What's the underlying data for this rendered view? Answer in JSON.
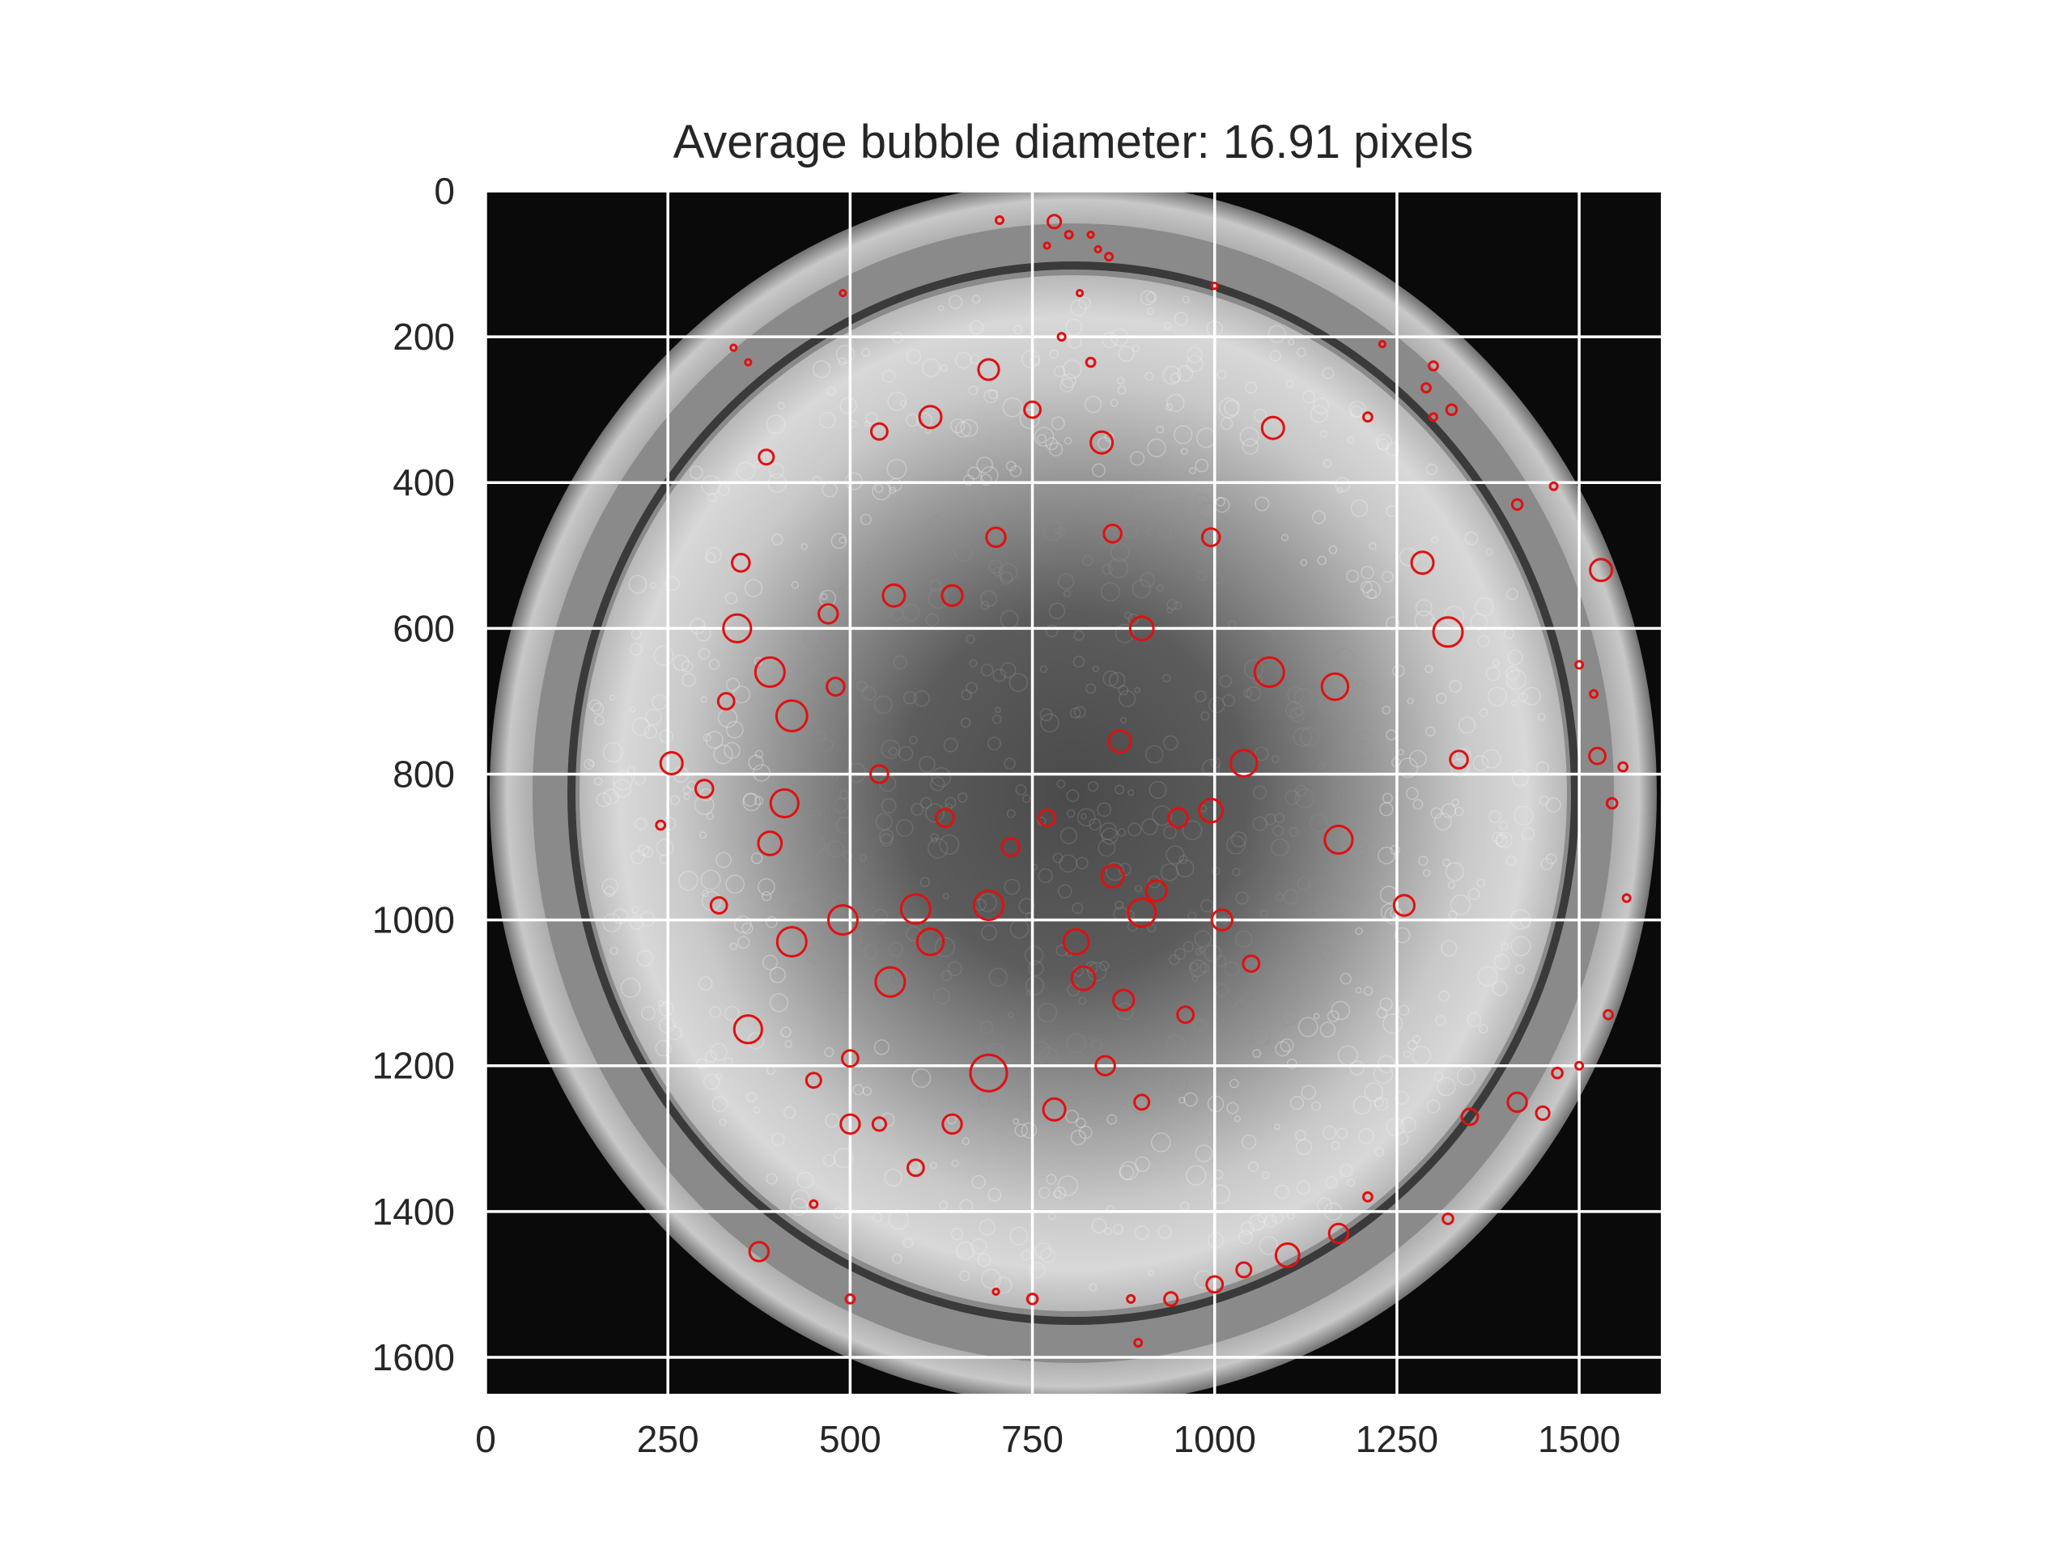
{
  "chart_data": {
    "type": "scatter",
    "title": "Average bubble diameter: 16.91 pixels",
    "xlabel": "",
    "ylabel": "",
    "xlim": [
      0,
      1612
    ],
    "ylim": [
      1650,
      0
    ],
    "y_inverted": true,
    "grid": true,
    "grid_color": "#ffffff",
    "marker_color": "#e01010",
    "background": "grayscale image of bubble foam in a circular column",
    "x_ticks": [
      "0",
      "250",
      "500",
      "750",
      "1000",
      "1250",
      "1500"
    ],
    "x_tick_values": [
      0,
      250,
      500,
      750,
      1000,
      1250,
      1500
    ],
    "y_ticks": [
      "0",
      "200",
      "400",
      "600",
      "800",
      "1000",
      "1200",
      "1400",
      "1600"
    ],
    "y_tick_values": [
      0,
      200,
      400,
      600,
      800,
      1000,
      1200,
      1400,
      1600
    ],
    "marker": "hollow circle",
    "points": [
      {
        "x": 705,
        "y": 40,
        "d": 10
      },
      {
        "x": 780,
        "y": 42,
        "d": 18
      },
      {
        "x": 800,
        "y": 60,
        "d": 10
      },
      {
        "x": 770,
        "y": 75,
        "d": 8
      },
      {
        "x": 830,
        "y": 60,
        "d": 8
      },
      {
        "x": 855,
        "y": 90,
        "d": 10
      },
      {
        "x": 840,
        "y": 80,
        "d": 8
      },
      {
        "x": 490,
        "y": 140,
        "d": 8
      },
      {
        "x": 1000,
        "y": 130,
        "d": 8
      },
      {
        "x": 815,
        "y": 140,
        "d": 8
      },
      {
        "x": 340,
        "y": 215,
        "d": 8
      },
      {
        "x": 360,
        "y": 235,
        "d": 8
      },
      {
        "x": 690,
        "y": 245,
        "d": 28
      },
      {
        "x": 790,
        "y": 200,
        "d": 10
      },
      {
        "x": 830,
        "y": 235,
        "d": 12
      },
      {
        "x": 1230,
        "y": 210,
        "d": 8
      },
      {
        "x": 1300,
        "y": 240,
        "d": 12
      },
      {
        "x": 1290,
        "y": 270,
        "d": 12
      },
      {
        "x": 1325,
        "y": 300,
        "d": 14
      },
      {
        "x": 1300,
        "y": 310,
        "d": 10
      },
      {
        "x": 1210,
        "y": 310,
        "d": 12
      },
      {
        "x": 385,
        "y": 365,
        "d": 20
      },
      {
        "x": 1465,
        "y": 405,
        "d": 10
      },
      {
        "x": 1415,
        "y": 430,
        "d": 14
      },
      {
        "x": 1530,
        "y": 520,
        "d": 30
      },
      {
        "x": 1320,
        "y": 605,
        "d": 40
      },
      {
        "x": 1500,
        "y": 650,
        "d": 10
      },
      {
        "x": 1520,
        "y": 690,
        "d": 10
      },
      {
        "x": 1525,
        "y": 775,
        "d": 22
      },
      {
        "x": 1560,
        "y": 790,
        "d": 12
      },
      {
        "x": 1545,
        "y": 840,
        "d": 14
      },
      {
        "x": 1565,
        "y": 970,
        "d": 10
      },
      {
        "x": 1540,
        "y": 1130,
        "d": 12
      },
      {
        "x": 1500,
        "y": 1200,
        "d": 10
      },
      {
        "x": 1470,
        "y": 1210,
        "d": 14
      },
      {
        "x": 1450,
        "y": 1265,
        "d": 18
      },
      {
        "x": 1415,
        "y": 1250,
        "d": 26
      },
      {
        "x": 1350,
        "y": 1270,
        "d": 22
      },
      {
        "x": 1320,
        "y": 1410,
        "d": 14
      },
      {
        "x": 1210,
        "y": 1380,
        "d": 12
      },
      {
        "x": 1170,
        "y": 1430,
        "d": 26
      },
      {
        "x": 1100,
        "y": 1460,
        "d": 32
      },
      {
        "x": 1040,
        "y": 1480,
        "d": 20
      },
      {
        "x": 1000,
        "y": 1500,
        "d": 22
      },
      {
        "x": 940,
        "y": 1520,
        "d": 18
      },
      {
        "x": 885,
        "y": 1520,
        "d": 10
      },
      {
        "x": 895,
        "y": 1580,
        "d": 10
      },
      {
        "x": 750,
        "y": 1520,
        "d": 14
      },
      {
        "x": 700,
        "y": 1510,
        "d": 8
      },
      {
        "x": 500,
        "y": 1520,
        "d": 12
      },
      {
        "x": 375,
        "y": 1455,
        "d": 26
      },
      {
        "x": 450,
        "y": 1390,
        "d": 10
      },
      {
        "x": 255,
        "y": 785,
        "d": 30
      },
      {
        "x": 240,
        "y": 870,
        "d": 12
      },
      {
        "x": 350,
        "y": 510,
        "d": 24
      },
      {
        "x": 345,
        "y": 600,
        "d": 38
      },
      {
        "x": 390,
        "y": 660,
        "d": 40
      },
      {
        "x": 420,
        "y": 720,
        "d": 42
      },
      {
        "x": 410,
        "y": 840,
        "d": 38
      },
      {
        "x": 390,
        "y": 895,
        "d": 32
      },
      {
        "x": 420,
        "y": 1030,
        "d": 40
      },
      {
        "x": 360,
        "y": 1150,
        "d": 38
      },
      {
        "x": 490,
        "y": 1000,
        "d": 40
      },
      {
        "x": 500,
        "y": 1280,
        "d": 26
      },
      {
        "x": 590,
        "y": 1340,
        "d": 22
      },
      {
        "x": 690,
        "y": 1210,
        "d": 50
      },
      {
        "x": 780,
        "y": 1260,
        "d": 30
      },
      {
        "x": 850,
        "y": 1200,
        "d": 26
      },
      {
        "x": 900,
        "y": 990,
        "d": 38
      },
      {
        "x": 860,
        "y": 940,
        "d": 30
      },
      {
        "x": 920,
        "y": 960,
        "d": 28
      },
      {
        "x": 1040,
        "y": 785,
        "d": 36
      },
      {
        "x": 1075,
        "y": 660,
        "d": 40
      },
      {
        "x": 1170,
        "y": 890,
        "d": 38
      },
      {
        "x": 1165,
        "y": 680,
        "d": 36
      },
      {
        "x": 1080,
        "y": 325,
        "d": 30
      },
      {
        "x": 1285,
        "y": 510,
        "d": 30
      },
      {
        "x": 1335,
        "y": 780,
        "d": 24
      },
      {
        "x": 1260,
        "y": 980,
        "d": 28
      },
      {
        "x": 995,
        "y": 850,
        "d": 32
      },
      {
        "x": 995,
        "y": 475,
        "d": 24
      },
      {
        "x": 845,
        "y": 345,
        "d": 30
      },
      {
        "x": 610,
        "y": 310,
        "d": 30
      },
      {
        "x": 560,
        "y": 555,
        "d": 30
      },
      {
        "x": 640,
        "y": 555,
        "d": 28
      },
      {
        "x": 700,
        "y": 475,
        "d": 26
      },
      {
        "x": 590,
        "y": 985,
        "d": 40
      },
      {
        "x": 610,
        "y": 1030,
        "d": 36
      },
      {
        "x": 555,
        "y": 1085,
        "d": 40
      },
      {
        "x": 690,
        "y": 980,
        "d": 40
      },
      {
        "x": 810,
        "y": 1030,
        "d": 34
      },
      {
        "x": 820,
        "y": 1080,
        "d": 32
      },
      {
        "x": 875,
        "y": 1110,
        "d": 28
      },
      {
        "x": 870,
        "y": 755,
        "d": 30
      },
      {
        "x": 900,
        "y": 600,
        "d": 32
      },
      {
        "x": 860,
        "y": 470,
        "d": 24
      },
      {
        "x": 750,
        "y": 300,
        "d": 22
      },
      {
        "x": 540,
        "y": 330,
        "d": 22
      },
      {
        "x": 470,
        "y": 580,
        "d": 26
      },
      {
        "x": 540,
        "y": 800,
        "d": 24
      },
      {
        "x": 630,
        "y": 860,
        "d": 24
      },
      {
        "x": 720,
        "y": 900,
        "d": 24
      },
      {
        "x": 770,
        "y": 860,
        "d": 22
      },
      {
        "x": 950,
        "y": 860,
        "d": 26
      },
      {
        "x": 1010,
        "y": 1000,
        "d": 28
      },
      {
        "x": 1050,
        "y": 1060,
        "d": 22
      },
      {
        "x": 960,
        "y": 1130,
        "d": 22
      },
      {
        "x": 900,
        "y": 1250,
        "d": 20
      },
      {
        "x": 640,
        "y": 1280,
        "d": 26
      },
      {
        "x": 540,
        "y": 1280,
        "d": 18
      },
      {
        "x": 450,
        "y": 1220,
        "d": 20
      },
      {
        "x": 320,
        "y": 980,
        "d": 22
      },
      {
        "x": 300,
        "y": 820,
        "d": 24
      },
      {
        "x": 330,
        "y": 700,
        "d": 22
      },
      {
        "x": 480,
        "y": 680,
        "d": 24
      },
      {
        "x": 500,
        "y": 1190,
        "d": 22
      }
    ]
  }
}
